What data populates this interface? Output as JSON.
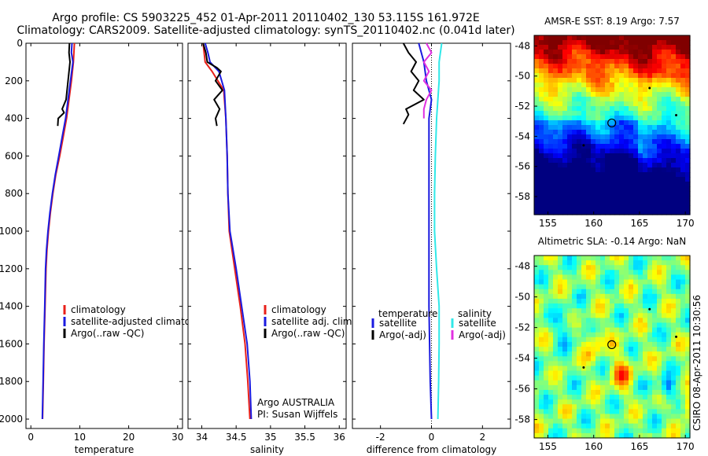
{
  "title_line1": "Argo profile: CS 5903225_452 01-Apr-2011 20110402_130 53.115S 161.972E",
  "title_line2": "Climatology: CARS2009. Satellite-adjusted climatology: synTS_20110402.nc (0.041d later)",
  "side_stamp": "CSIRO 08-Apr-2011 10:30:56",
  "colors": {
    "red": "#e8201a",
    "blue": "#1a1ae0",
    "black": "#000000",
    "cyan": "#30e8e8",
    "magenta": "#e030e0"
  },
  "chart_data": [
    {
      "type": "line",
      "xlabel": "temperature",
      "xlim": [
        -1,
        31
      ],
      "ylim": [
        0,
        2050
      ],
      "yticks": [
        0,
        200,
        400,
        600,
        800,
        1000,
        1200,
        1400,
        1600,
        1800,
        2000
      ],
      "xticks": [
        0,
        10,
        20,
        30
      ],
      "legend": [
        "climatology",
        "satellite-adjusted climatology",
        "Argo(..raw -QC)"
      ],
      "series": [
        {
          "name": "climatology",
          "color": "red",
          "points": [
            [
              8.9,
              0
            ],
            [
              8.7,
              100
            ],
            [
              8.3,
              200
            ],
            [
              7.8,
              300
            ],
            [
              7.3,
              400
            ],
            [
              6.6,
              500
            ],
            [
              5.9,
              600
            ],
            [
              5.1,
              700
            ],
            [
              4.5,
              800
            ],
            [
              4.0,
              900
            ],
            [
              3.6,
              1000
            ],
            [
              3.3,
              1100
            ],
            [
              3.1,
              1200
            ],
            [
              2.9,
              1400
            ],
            [
              2.7,
              1600
            ],
            [
              2.55,
              1800
            ],
            [
              2.4,
              2000
            ]
          ]
        },
        {
          "name": "satellite-adjusted climatology",
          "color": "blue",
          "points": [
            [
              8.4,
              0
            ],
            [
              8.3,
              50
            ],
            [
              8.6,
              100
            ],
            [
              8.1,
              200
            ],
            [
              7.6,
              300
            ],
            [
              7.1,
              400
            ],
            [
              6.4,
              500
            ],
            [
              5.7,
              600
            ],
            [
              5.0,
              700
            ],
            [
              4.4,
              800
            ],
            [
              3.9,
              900
            ],
            [
              3.5,
              1000
            ],
            [
              3.2,
              1100
            ],
            [
              3.0,
              1200
            ],
            [
              2.85,
              1400
            ],
            [
              2.65,
              1600
            ],
            [
              2.5,
              1800
            ],
            [
              2.35,
              2000
            ]
          ]
        },
        {
          "name": "Argo(..raw -QC)",
          "color": "black",
          "points": [
            [
              7.9,
              0
            ],
            [
              7.8,
              50
            ],
            [
              8.0,
              100
            ],
            [
              7.6,
              200
            ],
            [
              7.2,
              300
            ],
            [
              6.4,
              350
            ],
            [
              6.8,
              370
            ],
            [
              5.6,
              400
            ],
            [
              5.5,
              440
            ]
          ]
        }
      ]
    },
    {
      "type": "line",
      "xlabel": "salinity",
      "xlim": [
        33.8,
        36.1
      ],
      "ylim": [
        0,
        2050
      ],
      "xticks": [
        34,
        34.5,
        35,
        35.5,
        36
      ],
      "legend": [
        "climatology",
        "satellite adj. clim.",
        "Argo(..raw -QC)"
      ],
      "annotation": [
        "Argo AUSTRALIA",
        "PI: Susan Wijffels"
      ],
      "series": [
        {
          "name": "climatology",
          "color": "red",
          "points": [
            [
              34.02,
              0
            ],
            [
              34.05,
              100
            ],
            [
              34.15,
              150
            ],
            [
              34.32,
              250
            ],
            [
              34.35,
              400
            ],
            [
              34.37,
              600
            ],
            [
              34.38,
              800
            ],
            [
              34.4,
              1000
            ],
            [
              34.48,
              1200
            ],
            [
              34.56,
              1400
            ],
            [
              34.63,
              1600
            ],
            [
              34.67,
              1800
            ],
            [
              34.7,
              2000
            ]
          ]
        },
        {
          "name": "satellite adj. clim.",
          "color": "blue",
          "points": [
            [
              34.05,
              0
            ],
            [
              34.09,
              50
            ],
            [
              34.12,
              100
            ],
            [
              34.25,
              150
            ],
            [
              34.33,
              250
            ],
            [
              34.35,
              400
            ],
            [
              34.37,
              600
            ],
            [
              34.38,
              800
            ],
            [
              34.41,
              1000
            ],
            [
              34.5,
              1200
            ],
            [
              34.58,
              1400
            ],
            [
              34.66,
              1600
            ],
            [
              34.7,
              1800
            ],
            [
              34.72,
              2000
            ]
          ]
        },
        {
          "name": "Argo(..raw -QC)",
          "color": "black",
          "points": [
            [
              34.02,
              0
            ],
            [
              34.06,
              50
            ],
            [
              34.08,
              100
            ],
            [
              34.22,
              130
            ],
            [
              34.28,
              150
            ],
            [
              34.2,
              200
            ],
            [
              34.3,
              250
            ],
            [
              34.18,
              300
            ],
            [
              34.26,
              350
            ],
            [
              34.2,
              400
            ],
            [
              34.22,
              440
            ]
          ]
        }
      ]
    },
    {
      "type": "line",
      "xlabel": "difference from climatology",
      "xlim": [
        -3.1,
        3.1
      ],
      "ylim": [
        0,
        2050
      ],
      "xticks": [
        -2,
        0,
        2
      ],
      "legend_temperature": "temperature",
      "legend_salinity": "salinity",
      "legend": [
        "satellite",
        "Argo(-adj)",
        "satellite",
        "Argo(-adj)"
      ],
      "series": [
        {
          "name": "temperature satellite",
          "color": "blue",
          "points": [
            [
              -0.5,
              0
            ],
            [
              -0.3,
              100
            ],
            [
              -0.2,
              200
            ],
            [
              0.0,
              300
            ],
            [
              -0.1,
              400
            ],
            [
              -0.1,
              600
            ],
            [
              -0.1,
              800
            ],
            [
              -0.1,
              1000
            ],
            [
              -0.1,
              1400
            ],
            [
              -0.05,
              1800
            ],
            [
              0.0,
              2000
            ]
          ]
        },
        {
          "name": "temperature Argo(-adj)",
          "color": "black",
          "points": [
            [
              -1.1,
              0
            ],
            [
              -0.9,
              50
            ],
            [
              -0.6,
              100
            ],
            [
              -0.8,
              150
            ],
            [
              -0.5,
              200
            ],
            [
              -0.7,
              250
            ],
            [
              -0.3,
              300
            ],
            [
              -1.0,
              350
            ],
            [
              -0.9,
              380
            ],
            [
              -1.1,
              430
            ]
          ]
        },
        {
          "name": "salinity satellite",
          "color": "cyan",
          "points": [
            [
              0.4,
              0
            ],
            [
              0.3,
              100
            ],
            [
              0.3,
              200
            ],
            [
              0.25,
              300
            ],
            [
              0.2,
              400
            ],
            [
              0.15,
              600
            ],
            [
              0.12,
              800
            ],
            [
              0.12,
              1000
            ],
            [
              0.2,
              1200
            ],
            [
              0.3,
              1400
            ],
            [
              0.3,
              1600
            ],
            [
              0.28,
              1800
            ],
            [
              0.25,
              2000
            ]
          ]
        },
        {
          "name": "salinity Argo(-adj)",
          "color": "magenta",
          "points": [
            [
              -0.2,
              0
            ],
            [
              0.0,
              50
            ],
            [
              -0.3,
              100
            ],
            [
              -0.1,
              150
            ],
            [
              -0.3,
              200
            ],
            [
              0.0,
              250
            ],
            [
              -0.2,
              300
            ],
            [
              -0.3,
              350
            ],
            [
              -0.3,
              400
            ]
          ]
        }
      ]
    },
    {
      "type": "heatmap",
      "title": "AMSR-E SST: 8.19 Argo: 7.57",
      "xlim": [
        153.5,
        170.5
      ],
      "ylim": [
        -59.2,
        -47.3
      ],
      "xticks": [
        155,
        160,
        165,
        170
      ],
      "yticks": [
        -48,
        -50,
        -52,
        -54,
        -56,
        -58
      ],
      "field": "sst"
    },
    {
      "type": "heatmap",
      "title": "Altimetric SLA: -0.14 Argo: NaN",
      "xlim": [
        153.5,
        170.5
      ],
      "ylim": [
        -59.2,
        -47.3
      ],
      "xticks": [
        155,
        160,
        165,
        170
      ],
      "yticks": [
        -48,
        -50,
        -52,
        -54,
        -56,
        -58
      ],
      "field": "sla"
    }
  ]
}
